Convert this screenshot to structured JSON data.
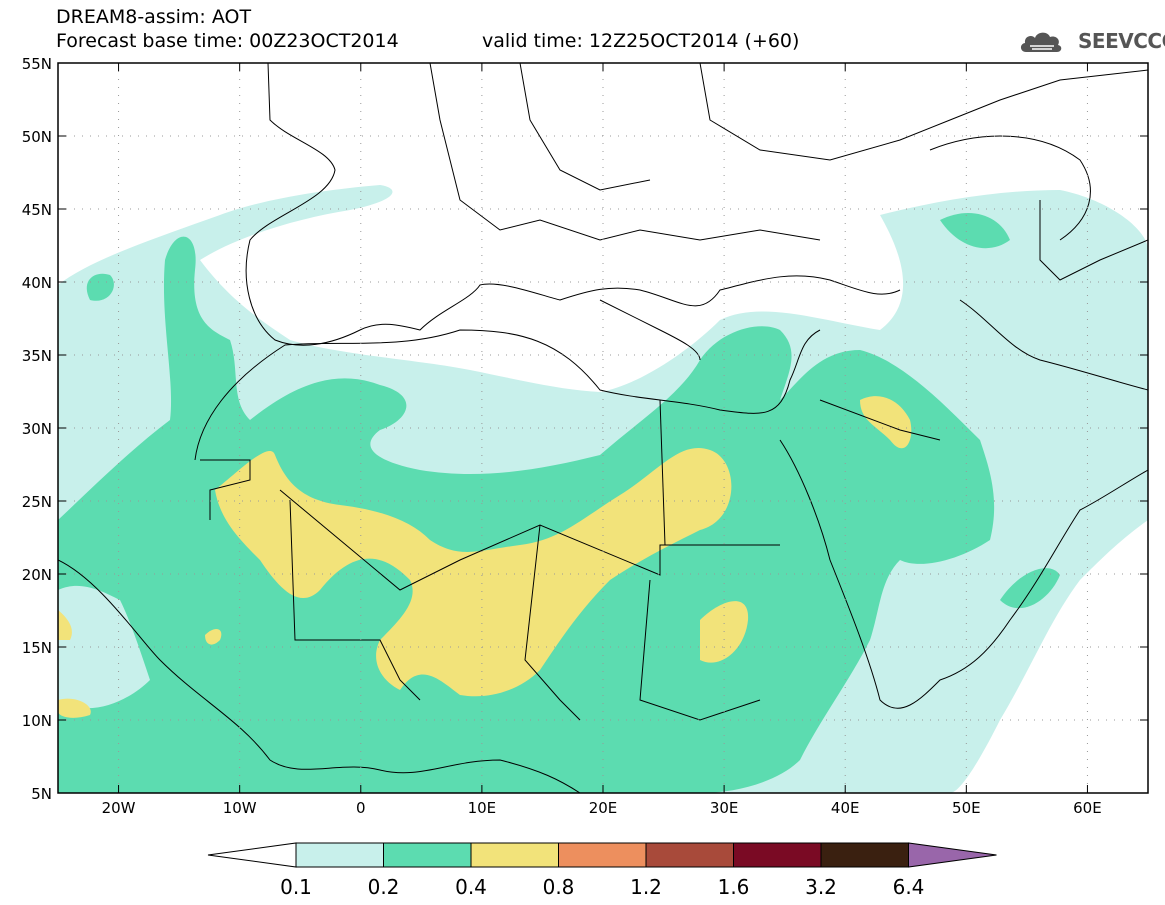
{
  "header": {
    "title_line1": "DREAM8-assim: AOT",
    "title_line2": "Forecast base time: 00Z23OCT2014",
    "valid_time": "valid time: 12Z25OCT2014 (+60)",
    "logo_text": "SEEVCCC"
  },
  "map": {
    "lon_range": [
      -25,
      65
    ],
    "lat_range": [
      5,
      55
    ],
    "lat_labels": [
      "55N",
      "50N",
      "45N",
      "40N",
      "35N",
      "30N",
      "25N",
      "20N",
      "15N",
      "10N",
      "5N"
    ],
    "lat_values": [
      55,
      50,
      45,
      40,
      35,
      30,
      25,
      20,
      15,
      10,
      5
    ],
    "lon_labels": [
      "20W",
      "10W",
      "0",
      "10E",
      "20E",
      "30E",
      "40E",
      "50E",
      "60E"
    ],
    "lon_values": [
      -20,
      -10,
      0,
      10,
      20,
      30,
      40,
      50,
      60
    ],
    "fill_colors": {
      "c01": "#c8f0eb",
      "c02": "#5cdcb0",
      "c04": "#f2e37a"
    }
  },
  "legend": {
    "labels": [
      "0.1",
      "0.2",
      "0.4",
      "0.8",
      "1.2",
      "1.6",
      "3.2",
      "6.4"
    ],
    "colors": [
      "#c8f0eb",
      "#5cdcb0",
      "#f2e37a",
      "#ed8f5e",
      "#a84a3a",
      "#7a0a24",
      "#3a2010"
    ],
    "left_arrow_color": "#ffffff",
    "right_arrow_color": "#9966aa"
  }
}
